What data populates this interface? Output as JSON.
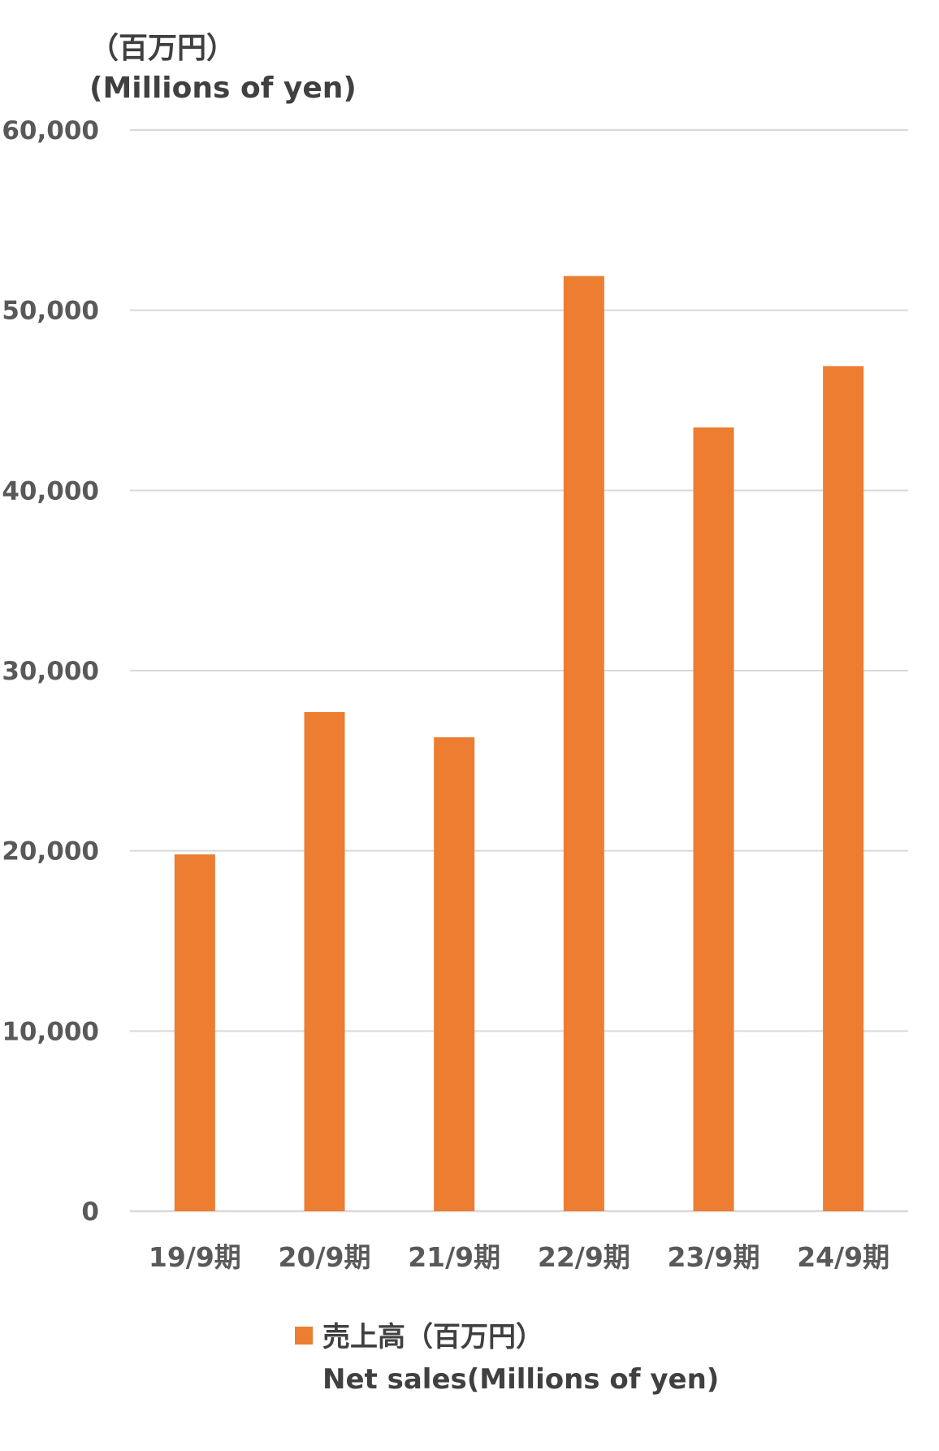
{
  "unit": {
    "jp": "（百万円）",
    "en": "(Millions of yen)"
  },
  "colors": {
    "bar": "#ED7D31",
    "grid": "#D9D9D9",
    "text": "#595959"
  },
  "legend": {
    "line1": "売上高（百万円）",
    "line2": "Net sales(Millions of yen)"
  },
  "chart_data": {
    "type": "bar",
    "categories": [
      "19/9期",
      "20/9期",
      "21/9期",
      "22/9期",
      "23/9期",
      "24/9期"
    ],
    "series": [
      {
        "name": "売上高（百万円） Net sales(Millions of yen)",
        "values": [
          19800,
          27700,
          26300,
          51900,
          43500,
          46900
        ]
      }
    ],
    "ylim": [
      0,
      60000
    ],
    "yticks": [
      0,
      10000,
      20000,
      30000,
      40000,
      50000,
      60000
    ],
    "ytick_labels": [
      "0",
      "10,000",
      "20,000",
      "30,000",
      "40,000",
      "50,000",
      "60,000"
    ],
    "ylabel": "（百万円） (Millions of yen)",
    "xlabel": "",
    "grid": true,
    "legend_position": "bottom"
  }
}
